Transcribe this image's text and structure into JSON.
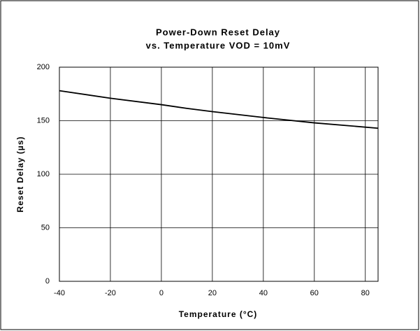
{
  "chart_data": {
    "type": "line",
    "title": "Power-Down Reset Delay",
    "subtitle": "vs. Temperature VOD = 10mV",
    "x_label": "Temperature (°C)",
    "y_label": "Reset Delay (µs)",
    "x": [
      -40,
      -20,
      0,
      10,
      20,
      40,
      60,
      85
    ],
    "series": [
      {
        "name": "Reset Delay",
        "color": "#000000",
        "values": [
          178,
          171,
          165,
          161.5,
          158.5,
          153,
          148,
          143
        ]
      }
    ],
    "xlim": [
      -40,
      85
    ],
    "xticks": [
      -40,
      -20,
      0,
      20,
      40,
      60,
      80
    ],
    "ylim": [
      0,
      200
    ],
    "yticks": [
      0,
      50,
      100,
      150,
      200
    ],
    "grid": true
  }
}
